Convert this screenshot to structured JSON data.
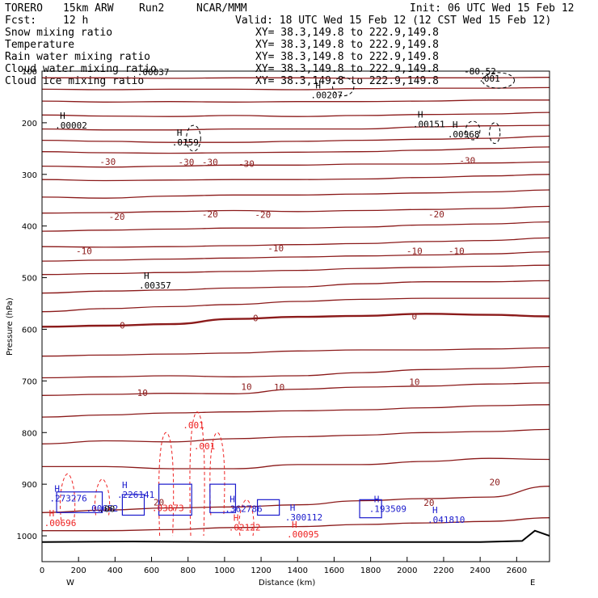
{
  "header": {
    "model": "TORERO",
    "config": "15km ARW",
    "run": "Run2",
    "org": "NCAR/MMM",
    "init": "Init: 06 UTC Wed 15 Feb 12",
    "fcst_label": "Fcst:",
    "fcst_value": "12 h",
    "valid": "Valid: 18 UTC Wed 15 Feb 12 (12 CST Wed 15 Feb 12)"
  },
  "legend": [
    {
      "name": "Snow mixing ratio",
      "xy": "XY=  38.3,149.8 to 222.9,149.8",
      "color": "#000000"
    },
    {
      "name": "Temperature",
      "xy": "XY=  38.3,149.8 to 222.9,149.8",
      "color": "#cc0000"
    },
    {
      "name": "Rain water mixing ratio",
      "xy": "XY=  38.3,149.8 to 222.9,149.8",
      "color": "#cc0000"
    },
    {
      "name": "Cloud water mixing ratio",
      "xy": "XY=  38.3,149.8 to 222.9,149.8",
      "color": "#1a1acc"
    },
    {
      "name": "Cloud ice mixing ratio",
      "xy": "XY=  38.3,149.8 to 222.9,149.8",
      "color": "#000000"
    }
  ],
  "colors": {
    "temperature_contour": "#8b1a1a",
    "rain": "#ee2222",
    "cloud_water": "#1a1acc",
    "ice": "#000000",
    "terrain": "#000000"
  },
  "chart_data": {
    "type": "cross-section contour",
    "xlabel": "Distance (km)",
    "ylabel": "Pressure (hPa)",
    "xlim": [
      0,
      2780
    ],
    "ylim": [
      1050,
      100
    ],
    "x_ticks": [
      0,
      200,
      400,
      600,
      800,
      1000,
      1200,
      1400,
      1600,
      1800,
      2000,
      2200,
      2400,
      2600
    ],
    "y_ticks": [
      100,
      200,
      300,
      400,
      500,
      600,
      700,
      800,
      900,
      1000
    ],
    "y_tick_labels": [
      "100",
      "200",
      "300",
      "400",
      "500",
      "600",
      "700",
      "800",
      "900",
      "1000"
    ],
    "left_end_label": "W",
    "right_end_label": "E",
    "temperature_isotherms": [
      {
        "p": [
          113,
          113,
          114,
          113,
          113,
          114,
          113,
          113,
          112
        ]
      },
      {
        "p": [
          135,
          136,
          135,
          135,
          136,
          134,
          133,
          133,
          132
        ]
      },
      {
        "p": [
          158,
          160,
          159,
          160,
          159,
          159,
          158,
          156,
          156
        ]
      },
      {
        "p": [
          185,
          187,
          188,
          186,
          188,
          186,
          184,
          183,
          180
        ]
      },
      {
        "p": [
          212,
          214,
          214,
          212,
          212,
          212,
          208,
          206,
          205
        ]
      },
      {
        "p": [
          234,
          236,
          238,
          238,
          236,
          234,
          232,
          230,
          226
        ]
      },
      {
        "p": [
          256,
          258,
          259,
          258,
          257,
          256,
          253,
          250,
          247
        ]
      },
      {
        "p": [
          284,
          286,
          284,
          282,
          282,
          280,
          280,
          278,
          276
        ]
      },
      {
        "p": [
          310,
          312,
          311,
          310,
          310,
          309,
          306,
          303,
          300
        ]
      },
      {
        "p": [
          344,
          346,
          342,
          340,
          340,
          338,
          336,
          334,
          330
        ]
      },
      {
        "p": [
          375,
          374,
          372,
          370,
          372,
          370,
          368,
          366,
          362
        ]
      },
      {
        "p": [
          410,
          408,
          406,
          404,
          404,
          402,
          398,
          396,
          392
        ]
      },
      {
        "p": [
          440,
          441,
          440,
          438,
          436,
          434,
          430,
          428,
          423
        ]
      },
      {
        "p": [
          468,
          466,
          464,
          462,
          460,
          458,
          456,
          454,
          450
        ]
      },
      {
        "p": [
          494,
          492,
          490,
          488,
          486,
          482,
          480,
          478,
          476
        ]
      },
      {
        "p": [
          530,
          526,
          524,
          520,
          518,
          512,
          508,
          508,
          506
        ]
      },
      {
        "p": [
          566,
          560,
          556,
          552,
          546,
          542,
          540,
          540,
          540
        ]
      },
      {
        "p": [
          595,
          593,
          590,
          580,
          576,
          574,
          570,
          572,
          575
        ]
      },
      {
        "p": [
          652,
          650,
          648,
          646,
          642,
          640,
          640,
          638,
          636
        ]
      },
      {
        "p": [
          694,
          692,
          690,
          692,
          690,
          684,
          678,
          676,
          672
        ]
      },
      {
        "p": [
          728,
          726,
          724,
          725,
          716,
          712,
          710,
          706,
          704
        ]
      },
      {
        "p": [
          770,
          766,
          762,
          760,
          758,
          756,
          752,
          748,
          746
        ]
      },
      {
        "p": [
          822,
          816,
          818,
          812,
          808,
          805,
          800,
          798,
          794
        ]
      },
      {
        "p": [
          866,
          866,
          870,
          870,
          862,
          862,
          856,
          850,
          852
        ]
      },
      {
        "p": [
          955,
          950,
          946,
          944,
          940,
          932,
          928,
          925,
          904
        ]
      },
      {
        "p": [
          990,
          990,
          988,
          984,
          982,
          978,
          975,
          972,
          965
        ]
      }
    ],
    "isotherm_x": [
      0,
      350,
      700,
      1050,
      1400,
      1750,
      2100,
      2450,
      2780
    ],
    "temperature_labels": [
      {
        "x": 360,
        "p": 275,
        "text": "-30"
      },
      {
        "x": 790,
        "p": 276,
        "text": "-30"
      },
      {
        "x": 920,
        "p": 276,
        "text": "-30"
      },
      {
        "x": 1120,
        "p": 279,
        "text": "-30"
      },
      {
        "x": 2330,
        "p": 273,
        "text": "-30"
      },
      {
        "x": 410,
        "p": 382,
        "text": "-20"
      },
      {
        "x": 920,
        "p": 377,
        "text": "-20"
      },
      {
        "x": 1210,
        "p": 378,
        "text": "-20"
      },
      {
        "x": 2160,
        "p": 377,
        "text": "-20"
      },
      {
        "x": 230,
        "p": 448,
        "text": "-10"
      },
      {
        "x": 1280,
        "p": 443,
        "text": "-10"
      },
      {
        "x": 2040,
        "p": 448,
        "text": "-10"
      },
      {
        "x": 2270,
        "p": 448,
        "text": "-10"
      },
      {
        "x": 440,
        "p": 592,
        "text": "0"
      },
      {
        "x": 1170,
        "p": 578,
        "text": "0"
      },
      {
        "x": 2040,
        "p": 575,
        "text": "0"
      },
      {
        "x": 550,
        "p": 723,
        "text": "10"
      },
      {
        "x": 1120,
        "p": 711,
        "text": "10"
      },
      {
        "x": 1300,
        "p": 712,
        "text": "10"
      },
      {
        "x": 2040,
        "p": 702,
        "text": "10"
      },
      {
        "x": 640,
        "p": 935,
        "text": "20"
      },
      {
        "x": 2120,
        "p": 936,
        "text": "20"
      },
      {
        "x": 2480,
        "p": 896,
        "text": "20"
      }
    ],
    "maxima_labels": [
      {
        "x": 160,
        "p": 208,
        "h": "H",
        "text": ".00002",
        "color": "#000000"
      },
      {
        "x": 620,
        "p": 518,
        "h": "H",
        "text": ".00357",
        "color": "#000000"
      },
      {
        "x": 800,
        "p": 241,
        "h": "H",
        "text": ".0159",
        "color": "#000000"
      },
      {
        "x": 1560,
        "p": 149,
        "h": "H",
        "text": ".00207",
        "color": "#000000"
      },
      {
        "x": 2120,
        "p": 206,
        "h": "H",
        "text": ".00151",
        "color": "#000000"
      },
      {
        "x": 2310,
        "p": 225,
        "h": "H",
        "text": ".00968",
        "color": "#000000"
      },
      {
        "x": 2480,
        "p": 117,
        "h": "",
        "text": ".001",
        "color": "#000000"
      },
      {
        "x": 2400,
        "p": 103,
        "h": "",
        "text": "-80.52",
        "color": "#000000"
      },
      {
        "x": 610,
        "p": 105,
        "h": "",
        "text": ".00037",
        "color": "#000000"
      },
      {
        "x": 130,
        "p": 930,
        "h": "H",
        "text": ".273276",
        "color": "#1a1acc"
      },
      {
        "x": 500,
        "p": 923,
        "h": "H",
        "text": ".226141",
        "color": "#1a1acc"
      },
      {
        "x": 330,
        "p": 950,
        "h": "",
        "text": ".00652",
        "color": "#1a1acc"
      },
      {
        "x": 1090,
        "p": 951,
        "h": "H",
        "text": ".362786",
        "color": "#1a1acc"
      },
      {
        "x": 1420,
        "p": 967,
        "h": "H",
        "text": ".300112",
        "color": "#1a1acc"
      },
      {
        "x": 1880,
        "p": 951,
        "h": "H",
        "text": ".193509",
        "color": "#1a1acc"
      },
      {
        "x": 2200,
        "p": 972,
        "h": "H",
        "text": ".041810",
        "color": "#1a1acc"
      },
      {
        "x": 100,
        "p": 978,
        "h": "H",
        "text": ".00696",
        "color": "#ee2222"
      },
      {
        "x": 690,
        "p": 949,
        "h": "",
        "text": ".03873",
        "color": "#ee2222"
      },
      {
        "x": 1110,
        "p": 987,
        "h": "H",
        "text": ".02122",
        "color": "#ee2222"
      },
      {
        "x": 1430,
        "p": 1000,
        "h": "H",
        "text": ".00095",
        "color": "#ee2222"
      },
      {
        "x": 860,
        "p": 789,
        "h": "",
        "text": ".001",
        "color": "#ee2222"
      },
      {
        "x": 920,
        "p": 829,
        "h": "",
        "text": ".001",
        "color": "#ee2222"
      },
      {
        "x": 400,
        "p": 951,
        "h": "",
        "text": ".00",
        "color": "#000000"
      }
    ],
    "terrain": {
      "x": [
        0,
        500,
        1000,
        1500,
        2000,
        2400,
        2630,
        2700,
        2780
      ],
      "p": [
        1012,
        1011,
        1012,
        1012,
        1012,
        1012,
        1010,
        990,
        1000
      ]
    }
  }
}
